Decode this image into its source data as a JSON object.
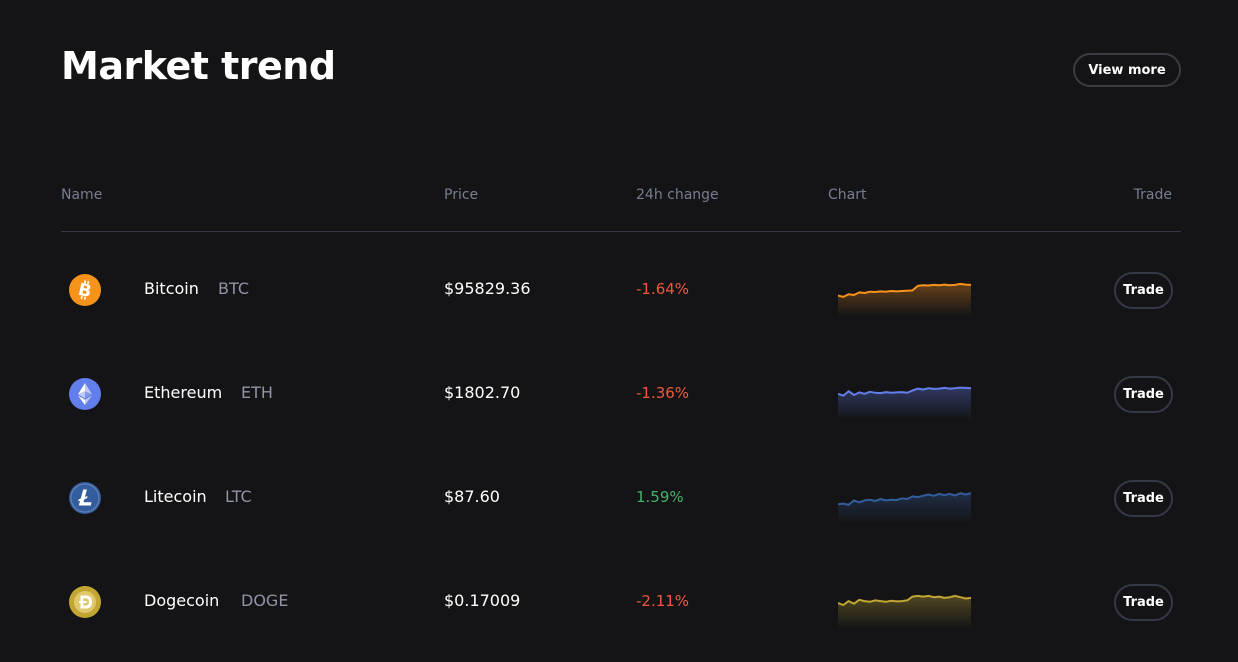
{
  "header": {
    "title": "Market trend",
    "view_more_label": "View more"
  },
  "table": {
    "columns": [
      "Name",
      "Price",
      "24h change",
      "Chart",
      "Trade"
    ],
    "rows": [
      {
        "name": "Bitcoin",
        "symbol": "BTC",
        "price": "$95829.36",
        "change": "-1.64%",
        "change_direction": "negative",
        "icon": "bitcoin-icon",
        "color": "#f7931a",
        "trade_label": "Trade",
        "sparkline": [
          0.32,
          0.28,
          0.36,
          0.34,
          0.42,
          0.4,
          0.44,
          0.43,
          0.45,
          0.44,
          0.46,
          0.45,
          0.46,
          0.47,
          0.48,
          0.62,
          0.64,
          0.63,
          0.65,
          0.64,
          0.66,
          0.64,
          0.65,
          0.68,
          0.66,
          0.65
        ]
      },
      {
        "name": "Ethereum",
        "symbol": "ETH",
        "price": "$1802.70",
        "change": "-1.36%",
        "change_direction": "negative",
        "icon": "ethereum-icon",
        "color": "#627eea",
        "trade_label": "Trade",
        "sparkline": [
          0.5,
          0.44,
          0.58,
          0.46,
          0.54,
          0.5,
          0.56,
          0.53,
          0.52,
          0.55,
          0.53,
          0.54,
          0.55,
          0.53,
          0.6,
          0.66,
          0.63,
          0.67,
          0.65,
          0.66,
          0.68,
          0.66,
          0.67,
          0.69,
          0.68,
          0.67
        ]
      },
      {
        "name": "Litecoin",
        "symbol": "LTC",
        "price": "$87.60",
        "change": "1.59%",
        "change_direction": "positive",
        "icon": "litecoin-icon",
        "color": "#345d9d",
        "trade_label": "Trade",
        "sparkline": [
          0.3,
          0.32,
          0.28,
          0.42,
          0.36,
          0.42,
          0.44,
          0.4,
          0.46,
          0.42,
          0.44,
          0.43,
          0.48,
          0.46,
          0.54,
          0.52,
          0.56,
          0.6,
          0.56,
          0.62,
          0.58,
          0.62,
          0.57,
          0.64,
          0.6,
          0.64
        ]
      },
      {
        "name": "Dogecoin",
        "symbol": "DOGE",
        "price": "$0.17009",
        "change": "-2.11%",
        "change_direction": "negative",
        "icon": "dogecoin-icon",
        "color": "#c2a633",
        "trade_label": "Trade",
        "sparkline": [
          0.46,
          0.4,
          0.52,
          0.44,
          0.56,
          0.52,
          0.5,
          0.54,
          0.52,
          0.5,
          0.53,
          0.51,
          0.52,
          0.54,
          0.66,
          0.68,
          0.66,
          0.68,
          0.64,
          0.66,
          0.62,
          0.64,
          0.68,
          0.64,
          0.6,
          0.62
        ]
      }
    ]
  }
}
